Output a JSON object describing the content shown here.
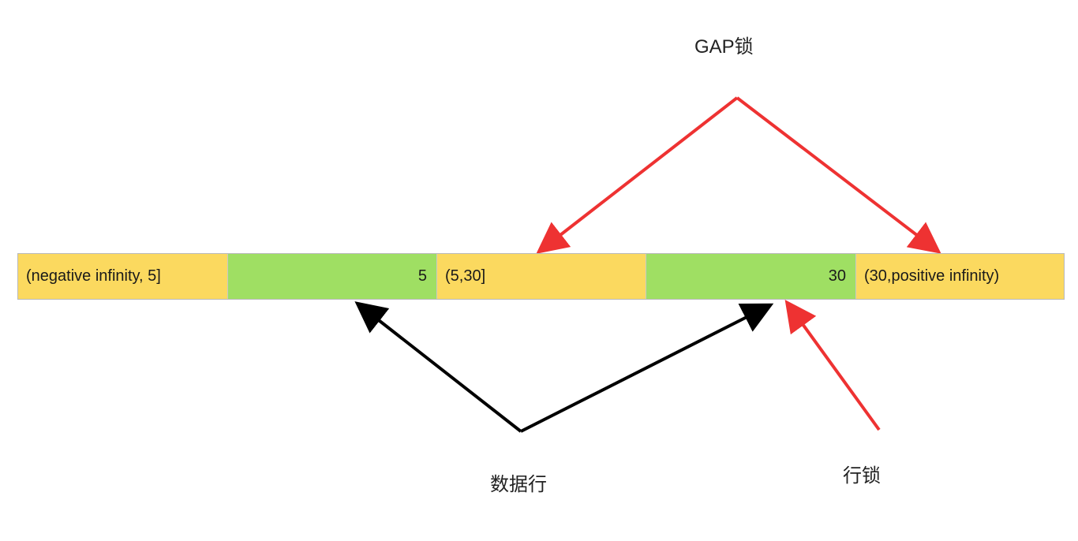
{
  "title_gap_lock": "GAP锁",
  "label_data_row": "数据行",
  "label_row_lock": "行锁",
  "colors": {
    "gap_segment": "#fbd95f",
    "row_segment": "#9fdf63",
    "gap_lock_arrow": "#ee3232",
    "row_lock_arrow": "#ee3232",
    "data_row_arrow": "#000000"
  },
  "segments": [
    {
      "kind": "gap",
      "text": "(negative infinity, 5]"
    },
    {
      "kind": "row",
      "text": "5"
    },
    {
      "kind": "gap",
      "text": "(5,30]"
    },
    {
      "kind": "row",
      "text": "30"
    },
    {
      "kind": "gap",
      "text": "(30,positive infinity)"
    }
  ]
}
